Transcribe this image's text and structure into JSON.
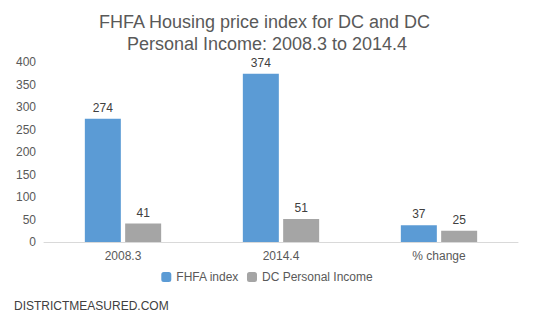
{
  "chart_data": {
    "type": "bar",
    "title": "FHFA Housing price index for DC and DC Personal Income: 2008.3 to 2014.4",
    "categories": [
      "2008.3",
      "2014.4",
      "% change"
    ],
    "series": [
      {
        "name": "FHFA index",
        "color": "#5b9bd5",
        "values": [
          274,
          374,
          37
        ]
      },
      {
        "name": "DC Personal Income",
        "color": "#a5a5a5",
        "values": [
          41,
          51,
          25
        ]
      }
    ],
    "ylim": [
      0,
      400
    ],
    "yticks": [
      0,
      50,
      100,
      150,
      200,
      250,
      300,
      350,
      400
    ],
    "grid": false,
    "legend": "bottom",
    "data_labels": true,
    "annotations": [
      "DISTRICTMEASURED.COM"
    ]
  }
}
